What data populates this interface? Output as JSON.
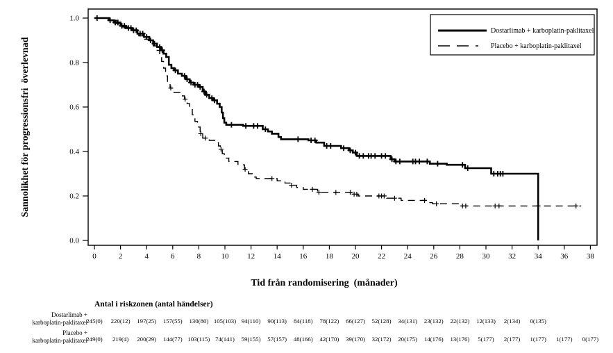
{
  "figure": {
    "background": "#ffffff",
    "line_color": "#000000"
  },
  "chart_data": {
    "type": "line",
    "subtype": "kaplan-meier-step-curves",
    "title": "",
    "xlabel": "Tid från randomisering  (månader)",
    "ylabel": "Sannolikhet för progressionsfri  överlevnad",
    "xlim": [
      0,
      38
    ],
    "ylim": [
      0.0,
      1.0
    ],
    "x_tick_step": 2,
    "y_tick_step": 0.2,
    "grid": false,
    "legend_position": "top-right-boxed",
    "series": [
      {
        "name": "Dostarlimab + karboplatin-paklitaxel",
        "line_style": "solid",
        "color": "#000000",
        "end_time": 34.0,
        "steps": [
          [
            0,
            1.0
          ],
          [
            1.1,
            0.99
          ],
          [
            1.5,
            0.98
          ],
          [
            2.0,
            0.965
          ],
          [
            2.4,
            0.955
          ],
          [
            2.9,
            0.945
          ],
          [
            3.3,
            0.93
          ],
          [
            3.8,
            0.915
          ],
          [
            4.2,
            0.9
          ],
          [
            4.5,
            0.885
          ],
          [
            4.8,
            0.87
          ],
          [
            5.1,
            0.855
          ],
          [
            5.3,
            0.84
          ],
          [
            5.5,
            0.825
          ],
          [
            5.7,
            0.79
          ],
          [
            5.9,
            0.775
          ],
          [
            6.1,
            0.765
          ],
          [
            6.4,
            0.75
          ],
          [
            6.7,
            0.74
          ],
          [
            7.0,
            0.725
          ],
          [
            7.3,
            0.71
          ],
          [
            7.6,
            0.7
          ],
          [
            8.0,
            0.69
          ],
          [
            8.3,
            0.67
          ],
          [
            8.5,
            0.655
          ],
          [
            8.8,
            0.64
          ],
          [
            9.1,
            0.63
          ],
          [
            9.4,
            0.615
          ],
          [
            9.6,
            0.6
          ],
          [
            9.75,
            0.575
          ],
          [
            9.85,
            0.55
          ],
          [
            9.95,
            0.53
          ],
          [
            10.1,
            0.52
          ],
          [
            11.4,
            0.515
          ],
          [
            12.9,
            0.5
          ],
          [
            13.3,
            0.49
          ],
          [
            13.6,
            0.48
          ],
          [
            14.1,
            0.465
          ],
          [
            14.3,
            0.455
          ],
          [
            16.4,
            0.45
          ],
          [
            17.0,
            0.44
          ],
          [
            17.6,
            0.425
          ],
          [
            18.9,
            0.415
          ],
          [
            19.5,
            0.405
          ],
          [
            19.8,
            0.395
          ],
          [
            20.1,
            0.38
          ],
          [
            22.7,
            0.365
          ],
          [
            23.0,
            0.355
          ],
          [
            25.7,
            0.345
          ],
          [
            27.0,
            0.34
          ],
          [
            28.4,
            0.325
          ],
          [
            30.4,
            0.3
          ],
          [
            34.0,
            0.0
          ]
        ],
        "censor_times": [
          0.2,
          1.2,
          1.6,
          1.8,
          2.1,
          2.3,
          2.6,
          2.8,
          3.0,
          3.2,
          3.5,
          3.7,
          4.0,
          4.3,
          4.6,
          5.0,
          5.2,
          6.2,
          6.9,
          7.1,
          7.4,
          7.7,
          7.9,
          8.1,
          8.4,
          8.6,
          9.0,
          9.2,
          10.5,
          11.6,
          12.2,
          12.5,
          13.1,
          15.6,
          16.6,
          16.9,
          17.8,
          18.1,
          19.1,
          19.6,
          20.0,
          20.3,
          20.6,
          21.0,
          21.2,
          21.5,
          22.0,
          22.3,
          22.8,
          23.1,
          23.4,
          24.4,
          24.6,
          24.9,
          25.5,
          26.3,
          28.2,
          28.6,
          30.6,
          30.9,
          31.1,
          31.3
        ]
      },
      {
        "name": "Placebo + karboplatin-paklitaxel",
        "line_style": "dashed",
        "color": "#000000",
        "end_time": 37.3,
        "steps": [
          [
            0,
            1.0
          ],
          [
            1.2,
            0.99
          ],
          [
            1.7,
            0.975
          ],
          [
            2.1,
            0.96
          ],
          [
            2.6,
            0.95
          ],
          [
            3.0,
            0.935
          ],
          [
            3.4,
            0.92
          ],
          [
            3.8,
            0.905
          ],
          [
            4.2,
            0.89
          ],
          [
            4.5,
            0.875
          ],
          [
            4.8,
            0.855
          ],
          [
            5.0,
            0.83
          ],
          [
            5.15,
            0.805
          ],
          [
            5.3,
            0.775
          ],
          [
            5.45,
            0.74
          ],
          [
            5.6,
            0.71
          ],
          [
            5.8,
            0.685
          ],
          [
            6.1,
            0.665
          ],
          [
            6.7,
            0.65
          ],
          [
            6.9,
            0.635
          ],
          [
            7.1,
            0.615
          ],
          [
            7.3,
            0.595
          ],
          [
            7.5,
            0.565
          ],
          [
            7.7,
            0.535
          ],
          [
            7.9,
            0.51
          ],
          [
            8.1,
            0.48
          ],
          [
            8.3,
            0.46
          ],
          [
            8.8,
            0.45
          ],
          [
            9.3,
            0.44
          ],
          [
            9.5,
            0.425
          ],
          [
            9.65,
            0.41
          ],
          [
            9.8,
            0.39
          ],
          [
            9.95,
            0.37
          ],
          [
            10.3,
            0.355
          ],
          [
            11.0,
            0.34
          ],
          [
            11.5,
            0.32
          ],
          [
            11.8,
            0.3
          ],
          [
            12.1,
            0.285
          ],
          [
            12.4,
            0.278
          ],
          [
            14.0,
            0.268
          ],
          [
            14.6,
            0.258
          ],
          [
            15.0,
            0.248
          ],
          [
            15.5,
            0.238
          ],
          [
            16.0,
            0.23
          ],
          [
            17.1,
            0.216
          ],
          [
            19.8,
            0.208
          ],
          [
            20.2,
            0.2
          ],
          [
            22.4,
            0.19
          ],
          [
            23.5,
            0.18
          ],
          [
            25.5,
            0.17
          ],
          [
            25.9,
            0.165
          ],
          [
            28.0,
            0.155
          ]
        ],
        "censor_times": [
          5.85,
          6.95,
          8.15,
          8.5,
          9.7,
          11.55,
          13.6,
          15.1,
          16.7,
          17.2,
          18.5,
          19.6,
          19.9,
          20.1,
          21.8,
          22.0,
          22.2,
          23.0,
          25.3,
          26.2,
          28.2,
          28.45,
          30.7,
          31.0,
          34.0,
          36.9
        ]
      }
    ]
  },
  "risk_table": {
    "title": "Antal i riskzonen (antal händelser)",
    "time_points": [
      0,
      2,
      4,
      6,
      8,
      10,
      12,
      14,
      16,
      18,
      20,
      22,
      24,
      26,
      28,
      30,
      32,
      34,
      36,
      38
    ],
    "rows": [
      {
        "label_lines": [
          "Dostarlimab +",
          "karboplatin-paklitaxel"
        ],
        "values": [
          "245(0)",
          "220(12)",
          "197(25)",
          "157(55)",
          "130(80)",
          "105(103)",
          "94(110)",
          "90(113)",
          "84(118)",
          "78(122)",
          "66(127)",
          "52(128)",
          "34(131)",
          "23(132)",
          "22(132)",
          "12(133)",
          "2(134)",
          "0(135)"
        ]
      },
      {
        "label_lines": [
          "Placebo +",
          "karboplatin-paklitaxel"
        ],
        "values": [
          "249(0)",
          "219(4)",
          "200(29)",
          "144(77)",
          "103(115)",
          "74(141)",
          "59(155)",
          "57(157)",
          "48(166)",
          "42(170)",
          "39(170)",
          "32(172)",
          "20(175)",
          "14(176)",
          "13(176)",
          "5(177)",
          "2(177)",
          "1(177)",
          "1(177)",
          "0(177)"
        ]
      }
    ]
  }
}
